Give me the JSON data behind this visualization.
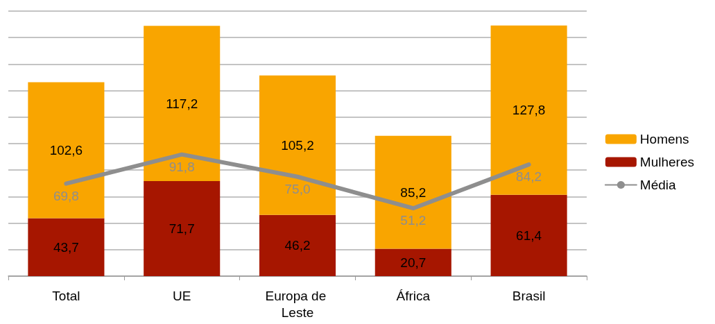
{
  "chart_data": {
    "type": "bar",
    "stacked": true,
    "categories": [
      "Total",
      "UE",
      "Europa de Leste",
      "África",
      "Brasil"
    ],
    "series": [
      {
        "name": "Mulheres",
        "color": "#a61600",
        "values": [
          43.7,
          71.7,
          46.2,
          20.7,
          61.4
        ],
        "value_labels": [
          "43,7",
          "71,7",
          "46,2",
          "20,7",
          "61,4"
        ]
      },
      {
        "name": "Homens",
        "color": "#f9a500",
        "values": [
          102.6,
          117.2,
          105.2,
          85.2,
          127.8
        ],
        "value_labels": [
          "102,6",
          "117,2",
          "105,2",
          "85,2",
          "127,8"
        ]
      },
      {
        "name": "Média",
        "type": "line",
        "color": "#8e8e8e",
        "values": [
          69.8,
          91.8,
          75.0,
          51.2,
          84.2
        ],
        "value_labels": [
          "69,8",
          "91,8",
          "75,0",
          "51,2",
          "84,2"
        ]
      }
    ],
    "ylim": [
      0,
      200
    ],
    "yticks": [
      {
        "value": 0,
        "label": null
      },
      {
        "value": 20,
        "label": null
      },
      {
        "value": 40,
        "label": null
      },
      {
        "value": 60,
        "label": null
      },
      {
        "value": 80,
        "label": null
      },
      {
        "value": 100,
        "label": null
      },
      {
        "value": 120,
        "label": null
      },
      {
        "value": 140,
        "label": null
      },
      {
        "value": 160,
        "label": null
      },
      {
        "value": 180,
        "label": null
      },
      {
        "value": 200,
        "label": null
      }
    ],
    "grid": "y",
    "legend": "right",
    "tick_labels": "x",
    "marker": "none",
    "line_style": "solid"
  }
}
